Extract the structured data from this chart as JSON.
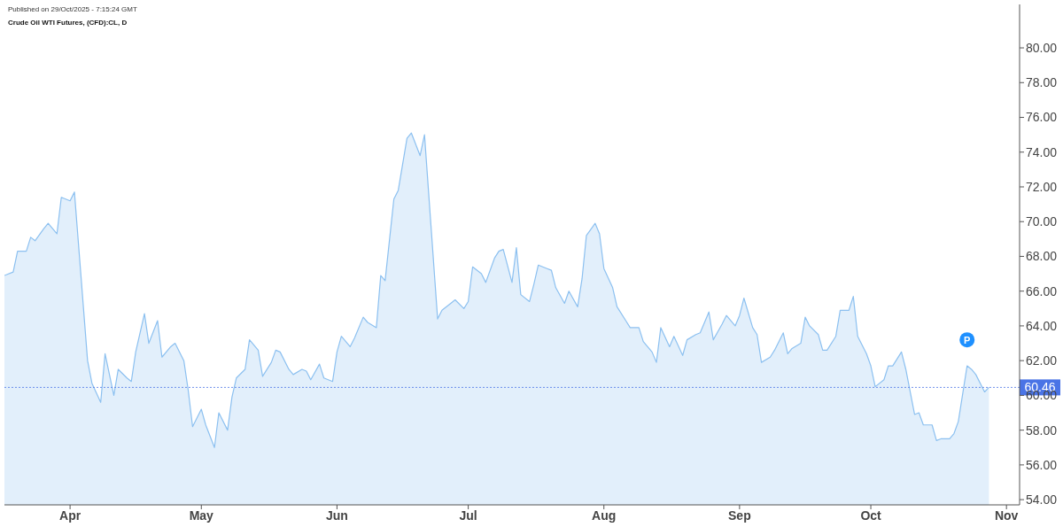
{
  "chart_data": {
    "type": "area",
    "title": "Crude Oil WTI Futures, (CFD):CL, D",
    "annotations": [
      "Published on 29/Oct/2025 - 7:15:24 GMT",
      {
        "text": "P",
        "x": "2025-10-23",
        "y": 63.2
      }
    ],
    "x": [
      "2025-03-17",
      "2025-03-19",
      "2025-03-20",
      "2025-03-22",
      "2025-03-23",
      "2025-03-24",
      "2025-03-26",
      "2025-03-27",
      "2025-03-29",
      "2025-03-30",
      "2025-04-01",
      "2025-04-02",
      "2025-04-05",
      "2025-04-06",
      "2025-04-08",
      "2025-04-09",
      "2025-04-11",
      "2025-04-12",
      "2025-04-14",
      "2025-04-15",
      "2025-04-16",
      "2025-04-18",
      "2025-04-19",
      "2025-04-21",
      "2025-04-22",
      "2025-04-24",
      "2025-04-25",
      "2025-04-27",
      "2025-04-28",
      "2025-04-29",
      "2025-05-01",
      "2025-05-02",
      "2025-05-04",
      "2025-05-05",
      "2025-05-07",
      "2025-05-08",
      "2025-05-09",
      "2025-05-11",
      "2025-05-12",
      "2025-05-14",
      "2025-05-15",
      "2025-05-17",
      "2025-05-18",
      "2025-05-19",
      "2025-05-21",
      "2025-05-22",
      "2025-05-24",
      "2025-05-25",
      "2025-05-26",
      "2025-05-28",
      "2025-05-29",
      "2025-05-31",
      "2025-06-01",
      "2025-06-02",
      "2025-06-04",
      "2025-06-05",
      "2025-06-07",
      "2025-06-08",
      "2025-06-10",
      "2025-06-11",
      "2025-06-12",
      "2025-06-14",
      "2025-06-15",
      "2025-06-17",
      "2025-06-18",
      "2025-06-20",
      "2025-06-21",
      "2025-06-24",
      "2025-06-25",
      "2025-06-27",
      "2025-06-28",
      "2025-06-30",
      "2025-07-01",
      "2025-07-02",
      "2025-07-04",
      "2025-07-05",
      "2025-07-07",
      "2025-07-08",
      "2025-07-09",
      "2025-07-11",
      "2025-07-12",
      "2025-07-13",
      "2025-07-15",
      "2025-07-16",
      "2025-07-17",
      "2025-07-19",
      "2025-07-20",
      "2025-07-21",
      "2025-07-23",
      "2025-07-24",
      "2025-07-26",
      "2025-07-27",
      "2025-07-28",
      "2025-07-30",
      "2025-07-31",
      "2025-08-01",
      "2025-08-03",
      "2025-08-04",
      "2025-08-06",
      "2025-08-07",
      "2025-08-09",
      "2025-08-10",
      "2025-08-12",
      "2025-08-13",
      "2025-08-14",
      "2025-08-16",
      "2025-08-17",
      "2025-08-19",
      "2025-08-20",
      "2025-08-22",
      "2025-08-23",
      "2025-08-25",
      "2025-08-26",
      "2025-08-28",
      "2025-08-29",
      "2025-08-31",
      "2025-09-01",
      "2025-09-02",
      "2025-09-04",
      "2025-09-05",
      "2025-09-06",
      "2025-09-08",
      "2025-09-09",
      "2025-09-11",
      "2025-09-12",
      "2025-09-13",
      "2025-09-15",
      "2025-09-16",
      "2025-09-17",
      "2025-09-19",
      "2025-09-20",
      "2025-09-21",
      "2025-09-23",
      "2025-09-24",
      "2025-09-26",
      "2025-09-27",
      "2025-09-28",
      "2025-09-30",
      "2025-10-01",
      "2025-10-02",
      "2025-10-04",
      "2025-10-05",
      "2025-10-06",
      "2025-10-08",
      "2025-10-09",
      "2025-10-11",
      "2025-10-12",
      "2025-10-13",
      "2025-10-15",
      "2025-10-16",
      "2025-10-17",
      "2025-10-19",
      "2025-10-20",
      "2025-10-21",
      "2025-10-23",
      "2025-10-24",
      "2025-10-25",
      "2025-10-27",
      "2025-10-28"
    ],
    "series": [
      {
        "color": "#8cc0f0",
        "values": [
          66.9,
          67.1,
          68.3,
          68.3,
          69.1,
          68.9,
          69.6,
          69.9,
          69.3,
          71.4,
          71.2,
          71.7,
          62.0,
          60.7,
          59.6,
          62.4,
          60.0,
          61.5,
          61.0,
          60.8,
          62.5,
          64.7,
          63.0,
          64.3,
          62.2,
          62.8,
          63.0,
          62.0,
          60.3,
          58.2,
          59.2,
          58.3,
          57.0,
          59.0,
          58.0,
          59.9,
          61.0,
          61.5,
          63.2,
          62.6,
          61.1,
          61.9,
          62.6,
          62.5,
          61.5,
          61.2,
          61.5,
          61.4,
          60.9,
          61.8,
          61.0,
          60.8,
          62.5,
          63.4,
          62.8,
          63.3,
          64.5,
          64.2,
          63.9,
          66.9,
          66.6,
          71.3,
          71.8,
          74.8,
          75.1,
          73.8,
          75.0,
          64.4,
          64.9,
          65.3,
          65.5,
          65.0,
          65.4,
          67.4,
          67.0,
          66.5,
          67.9,
          68.3,
          68.4,
          66.5,
          68.5,
          65.8,
          65.4,
          66.4,
          67.5,
          67.3,
          67.2,
          66.2,
          65.3,
          66.0,
          65.1,
          66.7,
          69.2,
          69.9,
          69.3,
          67.3,
          66.2,
          65.1,
          64.3,
          63.9,
          63.9,
          63.1,
          62.5,
          61.9,
          63.9,
          62.8,
          63.4,
          62.3,
          63.2,
          63.5,
          63.6,
          64.8,
          63.2,
          64.1,
          64.6,
          64.0,
          64.6,
          65.6,
          63.9,
          63.5,
          61.9,
          62.2,
          62.6,
          63.6,
          62.4,
          62.7,
          63.0,
          64.5,
          64.0,
          63.5,
          62.6,
          62.6,
          63.4,
          64.9,
          64.9,
          65.7,
          63.4,
          62.4,
          61.7,
          60.5,
          60.9,
          61.7,
          61.7,
          62.5,
          61.5,
          58.9,
          59.0,
          58.3,
          58.3,
          57.4,
          57.5,
          57.5,
          57.8,
          58.5,
          61.7,
          61.5,
          61.2,
          60.2,
          60.46
        ]
      }
    ],
    "xlim": [
      "2025-03-17",
      "2025-11-04"
    ],
    "xticks": [
      {
        "value": "2025-04-01",
        "label": "Apr"
      },
      {
        "value": "2025-05-01",
        "label": "May"
      },
      {
        "value": "2025-06-01",
        "label": "Jun"
      },
      {
        "value": "2025-07-01",
        "label": "Jul"
      },
      {
        "value": "2025-08-01",
        "label": "Aug"
      },
      {
        "value": "2025-09-01",
        "label": "Sep"
      },
      {
        "value": "2025-10-01",
        "label": "Oct"
      },
      {
        "value": "2025-11-01",
        "label": "Nov"
      }
    ],
    "ylim": [
      53.7,
      82.5
    ],
    "yticks": [
      {
        "value": 54,
        "label": "54.00"
      },
      {
        "value": 56,
        "label": "56.00"
      },
      {
        "value": 58,
        "label": "58.00"
      },
      {
        "value": 60,
        "label": "60.00"
      },
      {
        "value": 62,
        "label": "62.00"
      },
      {
        "value": 64,
        "label": "64.00"
      },
      {
        "value": 66,
        "label": "66.00"
      },
      {
        "value": 68,
        "label": "68.00"
      },
      {
        "value": 70,
        "label": "70.00"
      },
      {
        "value": 72,
        "label": "72.00"
      },
      {
        "value": 74,
        "label": "74.00"
      },
      {
        "value": 76,
        "label": "76.00"
      },
      {
        "value": 78,
        "label": "78.00"
      },
      {
        "value": 80,
        "label": "80.00"
      }
    ],
    "ref_lines": [
      {
        "axis": "y",
        "value": 60.46,
        "label": "60.46",
        "color": "#4a74e6",
        "line_style": "dotted"
      }
    ],
    "legend": false
  }
}
